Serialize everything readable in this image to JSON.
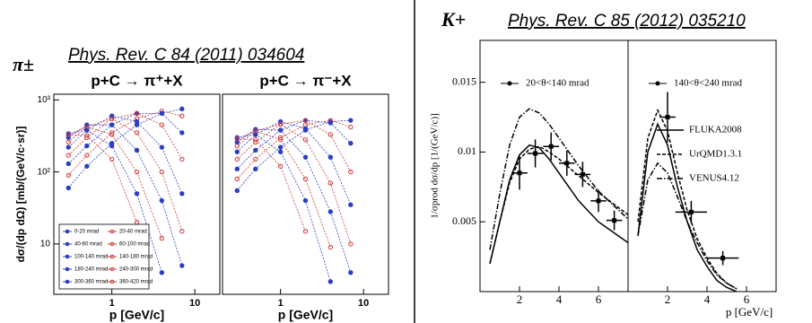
{
  "header": {
    "left_symbol": "π±",
    "left_reference": "Phys. Rev. C 84 (2011) 034604",
    "right_symbol": "K+",
    "right_reference": "Phys. Rev. C 85 (2012) 035210"
  },
  "chart_data": [
    {
      "type": "scatter",
      "title": "p+C → π⁺+X",
      "xlabel": "p [GeV/c]",
      "ylabel": "dσ/(dp dΩ) [mb/(GeV/c·sr)]",
      "log_x": true,
      "log_y": true,
      "xlim": [
        0.2,
        20
      ],
      "ylim": [
        2,
        1200
      ],
      "xticks": [
        1,
        10
      ],
      "yticks": [
        {
          "value": 10,
          "label": "10"
        },
        {
          "value": 100,
          "label": "10²"
        },
        {
          "value": 1000,
          "label": "10³"
        }
      ],
      "legend": "lower left",
      "series": [
        {
          "name": "0-20 mrad",
          "color": "#2b3fc4",
          "x": [
            0.3,
            0.5,
            1,
            2,
            4,
            7
          ],
          "values": [
            60,
            120,
            250,
            450,
            650,
            750
          ]
        },
        {
          "name": "20-40 mrad",
          "color": "#d23a3a",
          "x": [
            0.3,
            0.5,
            1,
            2,
            4,
            7
          ],
          "values": [
            90,
            170,
            350,
            550,
            700,
            600
          ]
        },
        {
          "name": "40-60 mrad",
          "color": "#2b3fc4",
          "x": [
            0.3,
            0.5,
            1,
            2,
            4,
            7
          ],
          "values": [
            130,
            230,
            450,
            650,
            650,
            350
          ]
        },
        {
          "name": "60-100 mrad",
          "color": "#d23a3a",
          "x": [
            0.3,
            0.5,
            1,
            2,
            4,
            7
          ],
          "values": [
            170,
            300,
            550,
            650,
            450,
            150
          ]
        },
        {
          "name": "100-140 mrad",
          "color": "#2b3fc4",
          "x": [
            0.3,
            0.5,
            1,
            2,
            4,
            7
          ],
          "values": [
            220,
            380,
            600,
            500,
            220,
            50
          ]
        },
        {
          "name": "140-180 mrad",
          "color": "#d23a3a",
          "x": [
            0.3,
            0.5,
            1,
            2,
            4,
            7
          ],
          "values": [
            260,
            420,
            550,
            350,
            100,
            15
          ]
        },
        {
          "name": "180-240 mrad",
          "color": "#2b3fc4",
          "x": [
            0.3,
            0.5,
            1,
            2,
            4,
            7
          ],
          "values": [
            300,
            450,
            450,
            200,
            40,
            5
          ]
        },
        {
          "name": "240-300 mrad",
          "color": "#d23a3a",
          "x": [
            0.3,
            0.5,
            1,
            2,
            4,
            7
          ],
          "values": [
            330,
            420,
            330,
            100,
            12,
            null
          ]
        },
        {
          "name": "300-360 mrad",
          "color": "#2b3fc4",
          "x": [
            0.3,
            0.5,
            1,
            2,
            4,
            7
          ],
          "values": [
            340,
            380,
            230,
            50,
            4,
            null
          ]
        },
        {
          "name": "360-420 mrad",
          "color": "#d23a3a",
          "x": [
            0.3,
            0.5,
            1,
            2,
            4,
            7
          ],
          "values": [
            330,
            320,
            150,
            20,
            null,
            null
          ]
        }
      ]
    },
    {
      "type": "scatter",
      "title": "p+C → π⁻+X",
      "xlabel": "p [GeV/c]",
      "log_x": true,
      "log_y": true,
      "xlim": [
        0.2,
        20
      ],
      "ylim": [
        2,
        1200
      ],
      "xticks": [
        1,
        10
      ],
      "series": [
        {
          "color": "#2b3fc4",
          "x": [
            0.3,
            0.5,
            1,
            2,
            4,
            7
          ],
          "values": [
            55,
            110,
            220,
            380,
            500,
            520
          ]
        },
        {
          "color": "#d23a3a",
          "x": [
            0.3,
            0.5,
            1,
            2,
            4,
            7
          ],
          "values": [
            80,
            150,
            300,
            450,
            520,
            420
          ]
        },
        {
          "color": "#2b3fc4",
          "x": [
            0.3,
            0.5,
            1,
            2,
            4,
            7
          ],
          "values": [
            110,
            200,
            380,
            520,
            480,
            250
          ]
        },
        {
          "color": "#d23a3a",
          "x": [
            0.3,
            0.5,
            1,
            2,
            4,
            7
          ],
          "values": [
            150,
            260,
            460,
            520,
            330,
            100
          ]
        },
        {
          "color": "#2b3fc4",
          "x": [
            0.3,
            0.5,
            1,
            2,
            4,
            7
          ],
          "values": [
            190,
            330,
            500,
            400,
            160,
            35
          ]
        },
        {
          "color": "#d23a3a",
          "x": [
            0.3,
            0.5,
            1,
            2,
            4,
            7
          ],
          "values": [
            230,
            370,
            460,
            280,
            70,
            10
          ]
        },
        {
          "color": "#2b3fc4",
          "x": [
            0.3,
            0.5,
            1,
            2,
            4,
            7
          ],
          "values": [
            260,
            390,
            380,
            160,
            28,
            4
          ]
        },
        {
          "color": "#d23a3a",
          "x": [
            0.3,
            0.5,
            1,
            2,
            4,
            7
          ],
          "values": [
            290,
            370,
            280,
            80,
            9,
            null
          ]
        },
        {
          "color": "#2b3fc4",
          "x": [
            0.3,
            0.5,
            1,
            2,
            4,
            7
          ],
          "values": [
            300,
            330,
            190,
            40,
            3,
            null
          ]
        },
        {
          "color": "#d23a3a",
          "x": [
            0.3,
            0.5,
            1,
            2,
            4,
            7
          ],
          "values": [
            290,
            280,
            120,
            15,
            null,
            null
          ]
        }
      ]
    },
    {
      "type": "line",
      "ylabel": "1/σprod dσ/dp [1/(GeV/c)]",
      "annotation": "20<θ<140 mrad",
      "xlim": [
        0,
        7.5
      ],
      "ylim": [
        0,
        0.018
      ],
      "xticks": [
        2,
        4,
        6
      ],
      "yticks": [
        0.005,
        0.01,
        0.015
      ],
      "series": [
        {
          "style": "points",
          "color": "#000000",
          "x": [
            2,
            2.8,
            3.6,
            4.4,
            5.2,
            6,
            6.8
          ],
          "values": [
            0.0085,
            0.0099,
            0.0104,
            0.0092,
            0.0084,
            0.0065,
            0.0051
          ],
          "yerr": [
            0.0012,
            0.001,
            0.001,
            0.0009,
            0.0009,
            0.0008,
            0.0007
          ],
          "xerr": [
            0.4,
            0.4,
            0.4,
            0.4,
            0.4,
            0.4,
            0.4
          ]
        },
        {
          "style": "solid",
          "color": "#000000",
          "x": [
            0.5,
            1,
            1.5,
            2,
            2.5,
            3,
            3.5,
            4,
            5,
            6,
            7.5
          ],
          "values": [
            0.002,
            0.005,
            0.008,
            0.0098,
            0.0105,
            0.0103,
            0.0095,
            0.0085,
            0.0065,
            0.005,
            0.0035
          ]
        },
        {
          "style": "dashed",
          "color": "#000000",
          "x": [
            0.5,
            1,
            1.5,
            2,
            2.5,
            3,
            3.5,
            4,
            5,
            6,
            7.5
          ],
          "values": [
            0.002,
            0.005,
            0.0078,
            0.0095,
            0.0102,
            0.0104,
            0.01,
            0.0095,
            0.0083,
            0.0071,
            0.0055
          ]
        },
        {
          "style": "dashdot",
          "color": "#000000",
          "x": [
            0.5,
            1,
            1.5,
            2,
            2.5,
            3,
            3.5,
            4,
            5,
            6,
            7.5
          ],
          "values": [
            0.003,
            0.007,
            0.0105,
            0.0125,
            0.0131,
            0.0128,
            0.012,
            0.011,
            0.009,
            0.0072,
            0.0052
          ]
        }
      ]
    },
    {
      "type": "line",
      "xlabel": "p [GeV/c]",
      "annotation": "140<θ<240 mrad",
      "legend": "right",
      "xlim": [
        0,
        7.5
      ],
      "ylim": [
        0,
        0.018
      ],
      "xticks": [
        2,
        4,
        6
      ],
      "series": [
        {
          "style": "points",
          "color": "#000000",
          "x": [
            2,
            3.2,
            4.8
          ],
          "values": [
            0.0125,
            0.0057,
            0.0024
          ],
          "yerr": [
            0.0018,
            0.0008,
            0.0005
          ],
          "xerr": [
            0.4,
            0.8,
            0.8
          ]
        },
        {
          "name": "FLUKA2008",
          "style": "solid",
          "color": "#000000",
          "x": [
            0.5,
            1,
            1.5,
            2,
            2.5,
            3,
            3.5,
            4,
            4.5,
            5,
            5.5
          ],
          "values": [
            0.004,
            0.01,
            0.012,
            0.0105,
            0.0075,
            0.005,
            0.003,
            0.0018,
            0.0008,
            0.0003,
            0
          ]
        },
        {
          "name": "UrQMD1.3.1",
          "style": "dashed",
          "color": "#000000",
          "x": [
            0.5,
            1,
            1.5,
            2,
            2.5,
            3,
            3.5,
            4,
            4.5,
            5,
            5.5
          ],
          "values": [
            0.005,
            0.011,
            0.013,
            0.0115,
            0.0085,
            0.0058,
            0.0038,
            0.0024,
            0.0013,
            0.0006,
            0.0002
          ]
        },
        {
          "name": "VENUS4.12",
          "style": "dashdot",
          "color": "#000000",
          "x": [
            0.5,
            1,
            1.5,
            2,
            2.5,
            3,
            3.5,
            4,
            4.5,
            5,
            5.5
          ],
          "values": [
            0.004,
            0.008,
            0.0092,
            0.0085,
            0.0068,
            0.005,
            0.0035,
            0.0022,
            0.0012,
            0.0006,
            0.0002
          ]
        }
      ]
    }
  ]
}
